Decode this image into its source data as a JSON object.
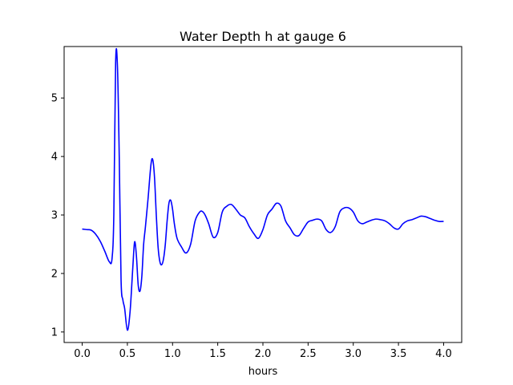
{
  "chart_data": {
    "type": "line",
    "title": "Water Depth h at gauge 6",
    "xlabel": "hours",
    "ylabel": "",
    "xlim": [
      -0.2,
      4.2
    ],
    "ylim": [
      0.82,
      5.88
    ],
    "xticks": [
      0.0,
      0.5,
      1.0,
      1.5,
      2.0,
      2.5,
      3.0,
      3.5,
      4.0
    ],
    "xtick_labels": [
      "0.0",
      "0.5",
      "1.0",
      "1.5",
      "2.0",
      "2.5",
      "3.0",
      "3.5",
      "4.0"
    ],
    "yticks": [
      1,
      2,
      3,
      4,
      5
    ],
    "ytick_labels": [
      "1",
      "2",
      "3",
      "4",
      "5"
    ],
    "grid": false,
    "series": [
      {
        "color": "#0000ff",
        "x": [
          0.0,
          0.05,
          0.1,
          0.15,
          0.2,
          0.25,
          0.3,
          0.33,
          0.35,
          0.37,
          0.39,
          0.41,
          0.43,
          0.45,
          0.47,
          0.5,
          0.53,
          0.56,
          0.58,
          0.6,
          0.62,
          0.64,
          0.66,
          0.68,
          0.7,
          0.73,
          0.76,
          0.78,
          0.8,
          0.82,
          0.84,
          0.86,
          0.88,
          0.9,
          0.92,
          0.94,
          0.96,
          0.98,
          1.0,
          1.02,
          1.05,
          1.1,
          1.15,
          1.2,
          1.25,
          1.3,
          1.33,
          1.36,
          1.4,
          1.45,
          1.5,
          1.55,
          1.6,
          1.65,
          1.7,
          1.75,
          1.8,
          1.85,
          1.9,
          1.95,
          2.0,
          2.05,
          2.1,
          2.15,
          2.2,
          2.25,
          2.3,
          2.35,
          2.4,
          2.45,
          2.5,
          2.55,
          2.6,
          2.65,
          2.7,
          2.75,
          2.8,
          2.85,
          2.9,
          2.95,
          3.0,
          3.05,
          3.1,
          3.15,
          3.2,
          3.25,
          3.3,
          3.35,
          3.4,
          3.45,
          3.5,
          3.55,
          3.6,
          3.65,
          3.7,
          3.75,
          3.8,
          3.85,
          3.9,
          3.95,
          4.0
        ],
        "y": [
          2.76,
          2.75,
          2.74,
          2.67,
          2.55,
          2.38,
          2.2,
          2.25,
          3.0,
          5.6,
          5.55,
          4.0,
          1.9,
          1.55,
          1.4,
          1.03,
          1.35,
          2.1,
          2.54,
          2.3,
          1.8,
          1.7,
          1.95,
          2.5,
          2.8,
          3.3,
          3.85,
          3.95,
          3.65,
          3.0,
          2.45,
          2.2,
          2.15,
          2.25,
          2.5,
          2.9,
          3.2,
          3.25,
          3.1,
          2.85,
          2.6,
          2.45,
          2.35,
          2.5,
          2.9,
          3.05,
          3.06,
          3.0,
          2.85,
          2.62,
          2.7,
          3.05,
          3.15,
          3.18,
          3.1,
          3.0,
          2.95,
          2.8,
          2.68,
          2.6,
          2.75,
          3.0,
          3.1,
          3.2,
          3.15,
          2.9,
          2.78,
          2.66,
          2.65,
          2.77,
          2.88,
          2.91,
          2.93,
          2.9,
          2.75,
          2.7,
          2.8,
          3.05,
          3.12,
          3.12,
          3.05,
          2.9,
          2.85,
          2.88,
          2.91,
          2.93,
          2.92,
          2.9,
          2.85,
          2.78,
          2.76,
          2.85,
          2.9,
          2.92,
          2.95,
          2.98,
          2.97,
          2.94,
          2.91,
          2.89,
          2.89
        ]
      }
    ]
  }
}
